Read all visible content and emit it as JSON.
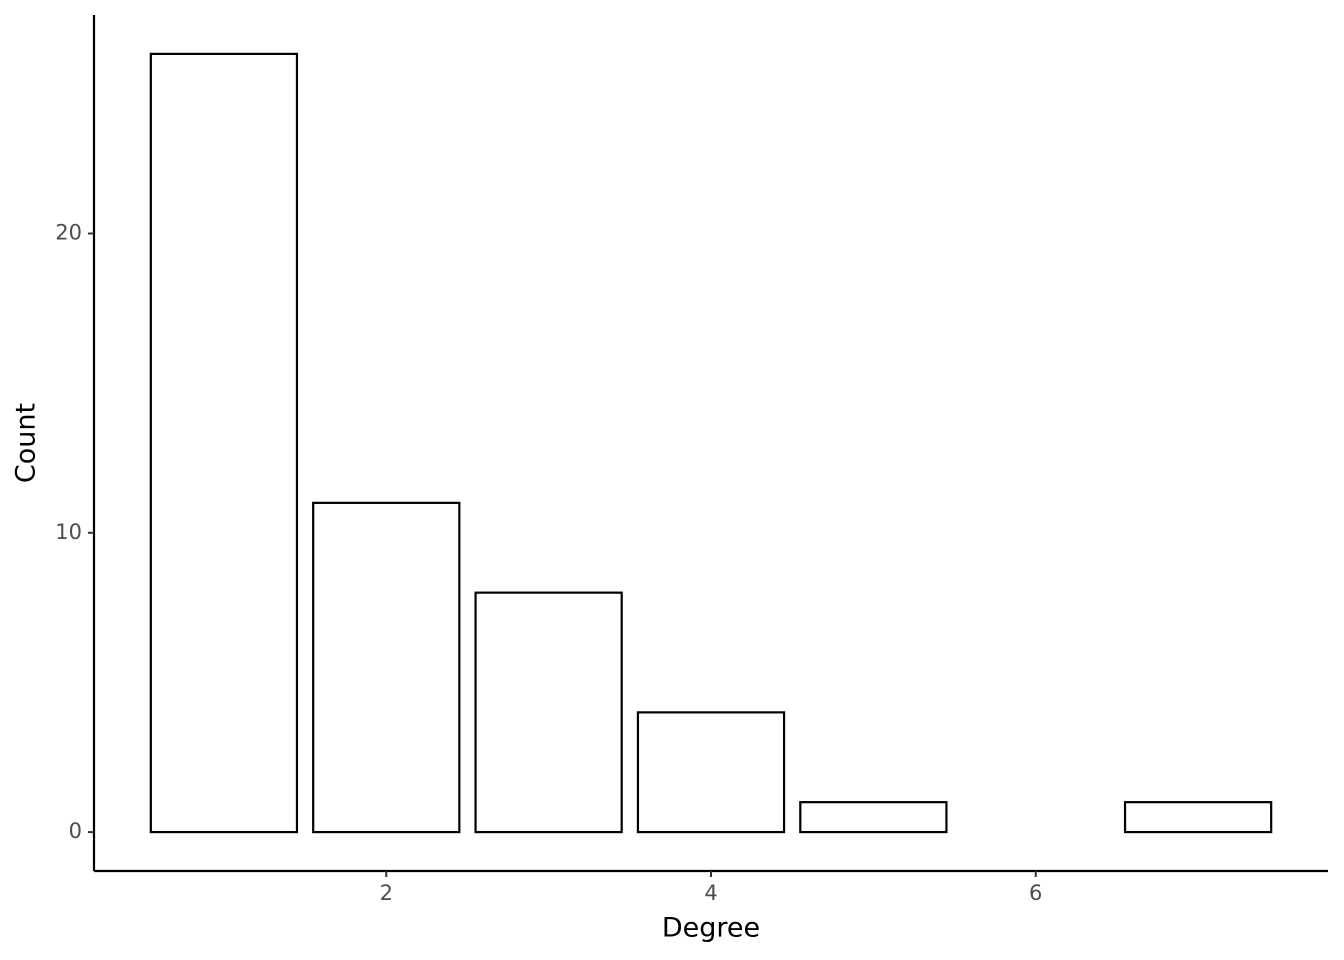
{
  "chart_data": {
    "type": "bar",
    "x_label": "Degree",
    "y_label": "Count",
    "x": [
      1,
      2,
      3,
      4,
      5,
      7
    ],
    "values": [
      26,
      11,
      8,
      4,
      1,
      1
    ],
    "color": "#ffffff",
    "edge_color": "#000000",
    "xlim": [
      0.2,
      7.8
    ],
    "ylim": [
      -1.3,
      27.3
    ],
    "xticks": [
      2,
      4,
      6
    ],
    "yticks": [
      0,
      10,
      20
    ],
    "grid": false
  }
}
